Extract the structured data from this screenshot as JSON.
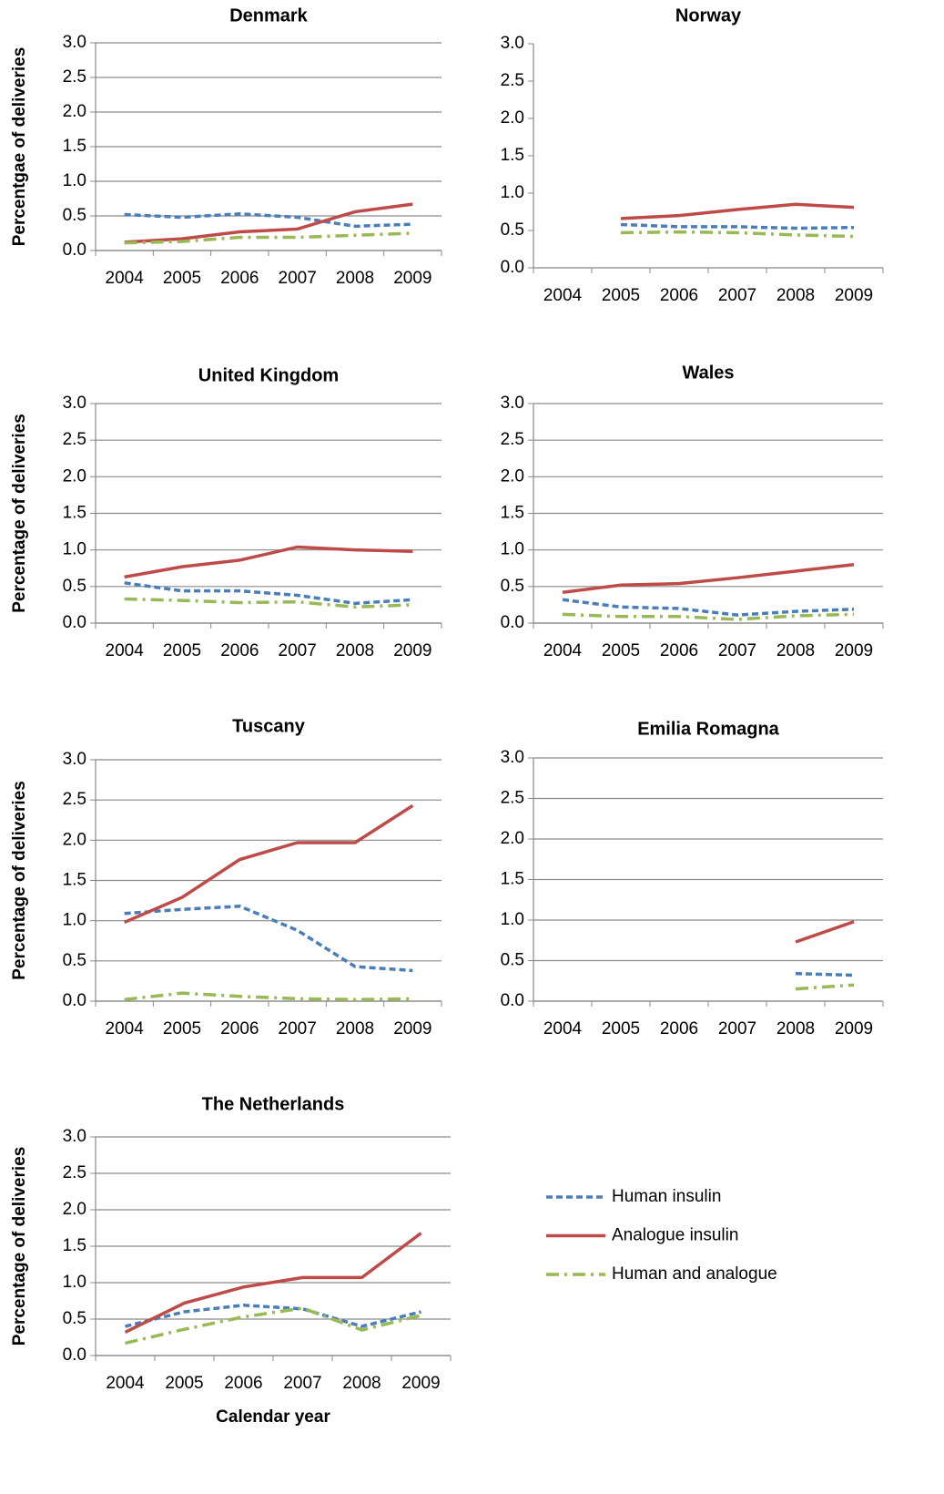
{
  "chart_data": [
    {
      "type": "line",
      "title": "Denmark",
      "y_label": "Percentgae of deliveries",
      "categories": [
        "2004",
        "2005",
        "2006",
        "2007",
        "2008",
        "2009"
      ],
      "ylim": [
        0,
        3
      ],
      "yticks": [
        {
          "value": 0,
          "label": "0.0"
        },
        {
          "value": 0.5,
          "label": "0.5"
        },
        {
          "value": 1,
          "label": "1.0"
        },
        {
          "value": 1.5,
          "label": "1.5"
        },
        {
          "value": 2,
          "label": "2.0"
        },
        {
          "value": 2.5,
          "label": "2.5"
        },
        {
          "value": 3,
          "label": "3.0"
        }
      ],
      "grid": true,
      "series": [
        {
          "color": "#4a7ebb",
          "values": [
            0.52,
            0.48,
            0.53,
            0.48,
            0.35,
            0.38
          ]
        },
        {
          "color": "#be4b48",
          "values": [
            0.12,
            0.17,
            0.27,
            0.31,
            0.56,
            0.67
          ]
        },
        {
          "color": "#98b954",
          "values": [
            0.11,
            0.13,
            0.19,
            0.19,
            0.22,
            0.25
          ]
        }
      ]
    },
    {
      "type": "line",
      "title": "Norway",
      "categories": [
        "2004",
        "2005",
        "2006",
        "2007",
        "2008",
        "2009"
      ],
      "ylim": [
        0,
        3
      ],
      "yticks": [
        {
          "value": 0,
          "label": "0.0"
        },
        {
          "value": 0.5,
          "label": "0.5"
        },
        {
          "value": 1,
          "label": "1.0"
        },
        {
          "value": 1.5,
          "label": "1.5"
        },
        {
          "value": 2,
          "label": "2.0"
        },
        {
          "value": 2.5,
          "label": "2.5"
        },
        {
          "value": 3,
          "label": "3.0"
        }
      ],
      "grid": false,
      "series": [
        {
          "color": "#4a7ebb",
          "values": [
            null,
            0.58,
            0.55,
            0.55,
            0.53,
            0.54
          ]
        },
        {
          "color": "#be4b48",
          "values": [
            null,
            0.66,
            0.7,
            0.78,
            0.85,
            0.81
          ]
        },
        {
          "color": "#98b954",
          "values": [
            null,
            0.47,
            0.48,
            0.47,
            0.44,
            0.42
          ]
        }
      ]
    },
    {
      "type": "line",
      "title": "United Kingdom",
      "y_label": "Percentage of deliveries",
      "categories": [
        "2004",
        "2005",
        "2006",
        "2007",
        "2008",
        "2009"
      ],
      "ylim": [
        0,
        3
      ],
      "yticks": [
        {
          "value": 0,
          "label": "0.0"
        },
        {
          "value": 0.5,
          "label": "0.5"
        },
        {
          "value": 1,
          "label": "1.0"
        },
        {
          "value": 1.5,
          "label": "1.5"
        },
        {
          "value": 2,
          "label": "2.0"
        },
        {
          "value": 2.5,
          "label": "2.5"
        },
        {
          "value": 3,
          "label": "3.0"
        }
      ],
      "grid": true,
      "series": [
        {
          "color": "#4a7ebb",
          "values": [
            0.55,
            0.44,
            0.44,
            0.38,
            0.27,
            0.32
          ]
        },
        {
          "color": "#be4b48",
          "values": [
            0.63,
            0.77,
            0.86,
            1.04,
            1.0,
            0.98
          ]
        },
        {
          "color": "#98b954",
          "values": [
            0.33,
            0.31,
            0.28,
            0.29,
            0.22,
            0.25
          ]
        }
      ]
    },
    {
      "type": "line",
      "title": "Wales",
      "categories": [
        "2004",
        "2005",
        "2006",
        "2007",
        "2008",
        "2009"
      ],
      "ylim": [
        0,
        3
      ],
      "yticks": [
        {
          "value": 0,
          "label": "0.0"
        },
        {
          "value": 0.5,
          "label": "0.5"
        },
        {
          "value": 1,
          "label": "1.0"
        },
        {
          "value": 1.5,
          "label": "1.5"
        },
        {
          "value": 2,
          "label": "2.0"
        },
        {
          "value": 2.5,
          "label": "2.5"
        },
        {
          "value": 3,
          "label": "3.0"
        }
      ],
      "grid": true,
      "series": [
        {
          "color": "#4a7ebb",
          "values": [
            0.32,
            0.22,
            0.2,
            0.11,
            0.16,
            0.19
          ]
        },
        {
          "color": "#be4b48",
          "values": [
            0.42,
            0.52,
            0.54,
            0.62,
            0.71,
            0.8
          ]
        },
        {
          "color": "#98b954",
          "values": [
            0.12,
            0.09,
            0.09,
            0.05,
            0.1,
            0.12
          ]
        }
      ]
    },
    {
      "type": "line",
      "title": "Tuscany",
      "y_label": "Percentage of deliveries",
      "categories": [
        "2004",
        "2005",
        "2006",
        "2007",
        "2008",
        "2009"
      ],
      "ylim": [
        0,
        3
      ],
      "yticks": [
        {
          "value": 0,
          "label": "0.0"
        },
        {
          "value": 0.5,
          "label": "0.5"
        },
        {
          "value": 1,
          "label": "1.0"
        },
        {
          "value": 1.5,
          "label": "1.5"
        },
        {
          "value": 2,
          "label": "2.0"
        },
        {
          "value": 2.5,
          "label": "2.5"
        },
        {
          "value": 3,
          "label": "3.0"
        }
      ],
      "grid": true,
      "series": [
        {
          "color": "#4a7ebb",
          "values": [
            1.09,
            1.14,
            1.18,
            0.88,
            0.43,
            0.38
          ]
        },
        {
          "color": "#be4b48",
          "values": [
            0.98,
            1.29,
            1.76,
            1.97,
            1.97,
            2.43
          ]
        },
        {
          "color": "#98b954",
          "values": [
            0.02,
            0.1,
            0.06,
            0.03,
            0.02,
            0.03
          ]
        }
      ]
    },
    {
      "type": "line",
      "title": "Emilia Romagna",
      "categories": [
        "2004",
        "2005",
        "2006",
        "2007",
        "2008",
        "2009"
      ],
      "ylim": [
        0,
        3
      ],
      "yticks": [
        {
          "value": 0,
          "label": "0.0"
        },
        {
          "value": 0.5,
          "label": "0.5"
        },
        {
          "value": 1,
          "label": "1.0"
        },
        {
          "value": 1.5,
          "label": "1.5"
        },
        {
          "value": 2,
          "label": "2.0"
        },
        {
          "value": 2.5,
          "label": "2.5"
        },
        {
          "value": 3,
          "label": "3.0"
        }
      ],
      "grid": true,
      "series": [
        {
          "color": "#4a7ebb",
          "values": [
            null,
            null,
            null,
            null,
            0.34,
            0.32
          ]
        },
        {
          "color": "#be4b48",
          "values": [
            null,
            null,
            null,
            null,
            0.73,
            0.98
          ]
        },
        {
          "color": "#98b954",
          "values": [
            null,
            null,
            null,
            null,
            0.15,
            0.2
          ]
        }
      ]
    },
    {
      "type": "line",
      "title": "The Netherlands",
      "y_label": "Percentage of deliveries",
      "x_label": "Calendar year",
      "categories": [
        "2004",
        "2005",
        "2006",
        "2007",
        "2008",
        "2009"
      ],
      "ylim": [
        0,
        3
      ],
      "yticks": [
        {
          "value": 0,
          "label": "0.0"
        },
        {
          "value": 0.5,
          "label": "0.5"
        },
        {
          "value": 1,
          "label": "1.0"
        },
        {
          "value": 1.5,
          "label": "1.5"
        },
        {
          "value": 2,
          "label": "2.0"
        },
        {
          "value": 2.5,
          "label": "2.5"
        },
        {
          "value": 3,
          "label": "3.0"
        }
      ],
      "grid": true,
      "series": [
        {
          "name": "Human insulin",
          "color": "#4a7ebb",
          "values": [
            0.4,
            0.6,
            0.69,
            0.64,
            0.4,
            0.6
          ]
        },
        {
          "name": "Analogue insulin",
          "color": "#be4b48",
          "values": [
            0.32,
            0.72,
            0.94,
            1.07,
            1.07,
            1.68
          ]
        },
        {
          "name": "Human and analogue",
          "color": "#98b954",
          "values": [
            0.17,
            0.36,
            0.53,
            0.65,
            0.35,
            0.55
          ]
        }
      ]
    }
  ]
}
